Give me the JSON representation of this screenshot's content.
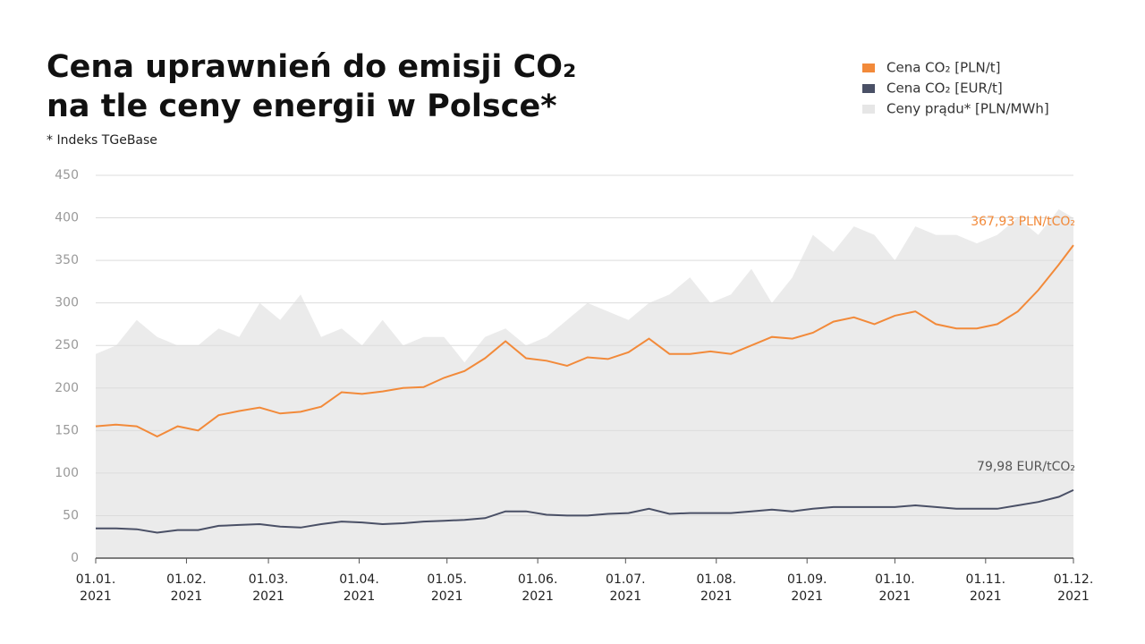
{
  "chart_data": {
    "type": "line",
    "title": [
      "Cena uprawnień do emisji CO₂",
      "na tle ceny energii w Polsce*"
    ],
    "subtitle": "* Indeks TGeBase",
    "x": [
      "2021-01-01",
      "2021-01-08",
      "2021-01-15",
      "2021-01-22",
      "2021-01-29",
      "2021-02-05",
      "2021-02-12",
      "2021-02-19",
      "2021-02-26",
      "2021-03-05",
      "2021-03-12",
      "2021-03-19",
      "2021-03-26",
      "2021-04-02",
      "2021-04-09",
      "2021-04-16",
      "2021-04-23",
      "2021-04-30",
      "2021-05-07",
      "2021-05-14",
      "2021-05-21",
      "2021-05-28",
      "2021-06-04",
      "2021-06-11",
      "2021-06-18",
      "2021-06-25",
      "2021-07-02",
      "2021-07-09",
      "2021-07-16",
      "2021-07-23",
      "2021-07-30",
      "2021-08-06",
      "2021-08-13",
      "2021-08-20",
      "2021-08-27",
      "2021-09-03",
      "2021-09-10",
      "2021-09-17",
      "2021-09-24",
      "2021-10-01",
      "2021-10-08",
      "2021-10-15",
      "2021-10-22",
      "2021-10-29",
      "2021-11-05",
      "2021-11-12",
      "2021-11-19",
      "2021-11-26",
      "2021-12-01"
    ],
    "series": [
      {
        "name": "Cena CO₂ [PLN/t]",
        "color": "#f28a3a",
        "values": [
          155,
          157,
          155,
          143,
          155,
          150,
          168,
          173,
          177,
          170,
          172,
          178,
          195,
          193,
          196,
          200,
          201,
          212,
          220,
          235,
          255,
          235,
          232,
          226,
          236,
          234,
          242,
          258,
          240,
          240,
          243,
          240,
          250,
          260,
          258,
          265,
          278,
          283,
          275,
          285,
          290,
          275,
          270,
          270,
          275,
          290,
          315,
          345,
          367.93
        ],
        "value_labels": [
          null,
          null,
          null,
          null,
          null,
          null,
          null,
          null,
          null,
          null,
          null,
          null,
          null,
          null,
          null,
          null,
          null,
          null,
          null,
          null,
          null,
          null,
          null,
          null,
          null,
          null,
          null,
          null,
          null,
          null,
          null,
          null,
          null,
          null,
          null,
          null,
          null,
          null,
          null,
          null,
          null,
          null,
          null,
          null,
          null,
          null,
          null,
          null,
          "367,93 PLN/tCO₂"
        ]
      },
      {
        "name": "Cena CO₂ [EUR/t]",
        "color": "#4a5066",
        "values": [
          35,
          35,
          34,
          30,
          33,
          33,
          38,
          39,
          40,
          37,
          36,
          40,
          43,
          42,
          40,
          41,
          43,
          44,
          45,
          47,
          55,
          55,
          51,
          50,
          50,
          52,
          53,
          58,
          52,
          53,
          53,
          53,
          55,
          57,
          55,
          58,
          60,
          60,
          60,
          60,
          62,
          60,
          58,
          58,
          58,
          62,
          66,
          72,
          79.98
        ],
        "value_labels": [
          null,
          null,
          null,
          null,
          null,
          null,
          null,
          null,
          null,
          null,
          null,
          null,
          null,
          null,
          null,
          null,
          null,
          null,
          null,
          null,
          null,
          null,
          null,
          null,
          null,
          null,
          null,
          null,
          null,
          null,
          null,
          null,
          null,
          null,
          null,
          null,
          null,
          null,
          null,
          null,
          null,
          null,
          null,
          null,
          null,
          null,
          null,
          null,
          "79,98 EUR/tCO₂"
        ]
      },
      {
        "name": "Ceny prądu* [PLN/MWh]",
        "color": "#ebebeb",
        "area": true,
        "values": [
          240,
          250,
          280,
          260,
          250,
          250,
          270,
          260,
          300,
          280,
          310,
          260,
          270,
          250,
          280,
          250,
          260,
          260,
          230,
          260,
          270,
          250,
          260,
          280,
          300,
          290,
          280,
          300,
          310,
          330,
          300,
          310,
          340,
          300,
          330,
          380,
          360,
          390,
          380,
          350,
          390,
          380,
          380,
          370,
          380,
          400,
          380,
          410,
          400
        ]
      }
    ],
    "xlim": [
      "2021-01-01",
      "2021-12-01"
    ],
    "xticks": [
      {
        "value": "2021-01-01",
        "label": [
          "01.01.",
          "2021"
        ]
      },
      {
        "value": "2021-02-01",
        "label": [
          "01.02.",
          "2021"
        ]
      },
      {
        "value": "2021-03-01",
        "label": [
          "01.03.",
          "2021"
        ]
      },
      {
        "value": "2021-04-01",
        "label": [
          "01.04.",
          "2021"
        ]
      },
      {
        "value": "2021-05-01",
        "label": [
          "01.05.",
          "2021"
        ]
      },
      {
        "value": "2021-06-01",
        "label": [
          "01.06.",
          "2021"
        ]
      },
      {
        "value": "2021-07-01",
        "label": [
          "01.07.",
          "2021"
        ]
      },
      {
        "value": "2021-08-01",
        "label": [
          "01.08.",
          "2021"
        ]
      },
      {
        "value": "2021-09-01",
        "label": [
          "01.09.",
          "2021"
        ]
      },
      {
        "value": "2021-10-01",
        "label": [
          "01.10.",
          "2021"
        ]
      },
      {
        "value": "2021-11-01",
        "label": [
          "01.11.",
          "2021"
        ]
      },
      {
        "value": "2021-12-01",
        "label": [
          "01.12.",
          "2021"
        ]
      }
    ],
    "ylim": [
      0,
      450
    ],
    "yticks": [
      0,
      50,
      100,
      150,
      200,
      250,
      300,
      350,
      400,
      450
    ],
    "grid": true,
    "legend": "top-right"
  }
}
